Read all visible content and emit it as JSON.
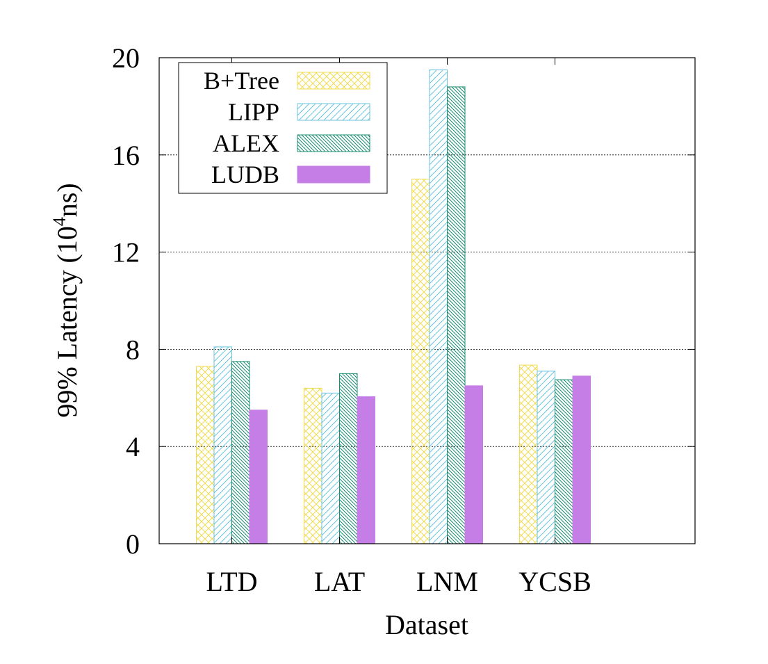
{
  "chart_data": {
    "type": "bar",
    "xlabel": "Dataset",
    "ylabel": "99% Latency (10",
    "ylabel_sup": "4",
    "ylabel_suffix": "ns)",
    "categories": [
      "LTD",
      "LAT",
      "LNM",
      "YCSB"
    ],
    "ylim": [
      0,
      20
    ],
    "yticks": [
      0,
      4,
      8,
      12,
      16,
      20
    ],
    "grid": "horizontal dashed at major y ticks",
    "legend_position": "top-left",
    "series": [
      {
        "name": "B+Tree",
        "values": [
          7.3,
          6.4,
          15.0,
          7.35
        ],
        "color": "#f0dc50",
        "pattern": "crosshatch"
      },
      {
        "name": "LIPP",
        "values": [
          8.1,
          6.2,
          19.5,
          7.1
        ],
        "color": "#6bc3df",
        "pattern": "diagonal-up"
      },
      {
        "name": "ALEX",
        "values": [
          7.5,
          7.0,
          18.8,
          6.75
        ],
        "color": "#1a8c70",
        "pattern": "diagonal-down-dense"
      },
      {
        "name": "LUDB",
        "values": [
          5.5,
          6.05,
          6.5,
          6.9
        ],
        "color": "#c57ee6",
        "pattern": "solid"
      }
    ]
  }
}
